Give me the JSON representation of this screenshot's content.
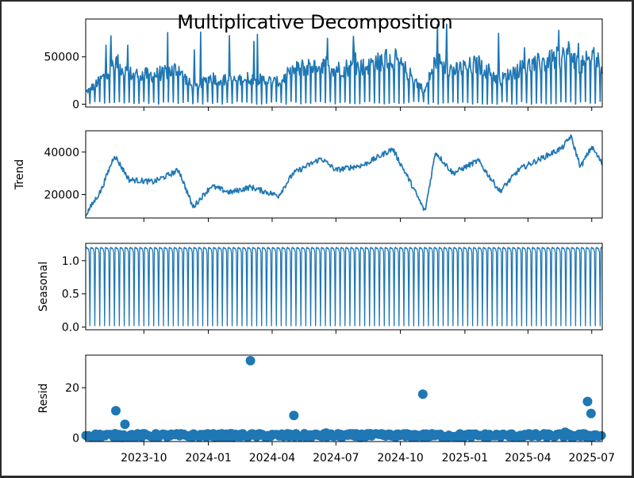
{
  "chart_data": {
    "type": "line",
    "title": "Multiplicative Decomposition",
    "x_range": [
      "2023-07-10",
      "2025-07-16"
    ],
    "x_ticks": [
      "2023-10",
      "2024-01",
      "2024-04",
      "2024-07",
      "2024-10",
      "2025-01",
      "2025-04",
      "2025-07"
    ],
    "panels": [
      {
        "name": "observed",
        "ylabel": "",
        "kind": "line",
        "ylim": [
          -3000,
          90000
        ],
        "yticks": [
          0,
          50000
        ],
        "ytick_labels": [
          "0",
          "50000"
        ],
        "baseline": 28000,
        "trend_drift": 12000,
        "max_value": 87000
      },
      {
        "name": "trend",
        "ylabel": "Trend",
        "kind": "line",
        "ylim": [
          9000,
          50000
        ],
        "yticks": [
          20000,
          40000
        ],
        "ytick_labels": [
          "20000",
          "40000"
        ],
        "key_points": [
          [
            "2023-07-10",
            10500
          ],
          [
            "2023-08-01",
            22000
          ],
          [
            "2023-08-20",
            38500
          ],
          [
            "2023-09-10",
            27000
          ],
          [
            "2023-10-15",
            26000
          ],
          [
            "2023-11-20",
            31500
          ],
          [
            "2023-12-10",
            14000
          ],
          [
            "2024-01-05",
            24000
          ],
          [
            "2024-02-01",
            21000
          ],
          [
            "2024-03-01",
            23500
          ],
          [
            "2024-04-10",
            19500
          ],
          [
            "2024-05-01",
            30000
          ],
          [
            "2024-06-10",
            37000
          ],
          [
            "2024-07-01",
            31500
          ],
          [
            "2024-08-10",
            34000
          ],
          [
            "2024-09-20",
            41500
          ],
          [
            "2024-10-15",
            26000
          ],
          [
            "2024-11-05",
            12000
          ],
          [
            "2024-11-20",
            40000
          ],
          [
            "2024-12-15",
            30000
          ],
          [
            "2025-01-20",
            36000
          ],
          [
            "2025-02-20",
            21500
          ],
          [
            "2025-03-20",
            32000
          ],
          [
            "2025-04-20",
            37000
          ],
          [
            "2025-05-20",
            42000
          ],
          [
            "2025-06-01",
            47500
          ],
          [
            "2025-06-15",
            33000
          ],
          [
            "2025-07-01",
            42500
          ],
          [
            "2025-07-16",
            34500
          ]
        ]
      },
      {
        "name": "seasonal",
        "ylabel": "Seasonal",
        "kind": "line",
        "ylim": [
          -0.04,
          1.26
        ],
        "yticks": [
          0.0,
          0.5,
          1.0
        ],
        "ytick_labels": [
          "0.0",
          "0.5",
          "1.0"
        ],
        "period_days": 7,
        "weekly_pattern": [
          1.19,
          1.2,
          1.18,
          1.19,
          1.17,
          1.12,
          0.02
        ]
      },
      {
        "name": "resid",
        "ylabel": "Resid",
        "kind": "scatter",
        "ylim": [
          -1.5,
          33
        ],
        "yticks": [
          0,
          20
        ],
        "ytick_labels": [
          "0",
          "20"
        ],
        "baseline_band": [
          0.0,
          1.8
        ],
        "outliers": [
          [
            "2023-08-22",
            10.8
          ],
          [
            "2023-09-04",
            5.4
          ],
          [
            "2024-03-01",
            30.8
          ],
          [
            "2024-05-02",
            8.9
          ],
          [
            "2024-06-17",
            1.9
          ],
          [
            "2024-08-15",
            1.6
          ],
          [
            "2024-11-02",
            17.4
          ],
          [
            "2025-05-24",
            2.2
          ],
          [
            "2025-06-25",
            14.5
          ],
          [
            "2025-06-30",
            9.7
          ]
        ]
      }
    ]
  }
}
